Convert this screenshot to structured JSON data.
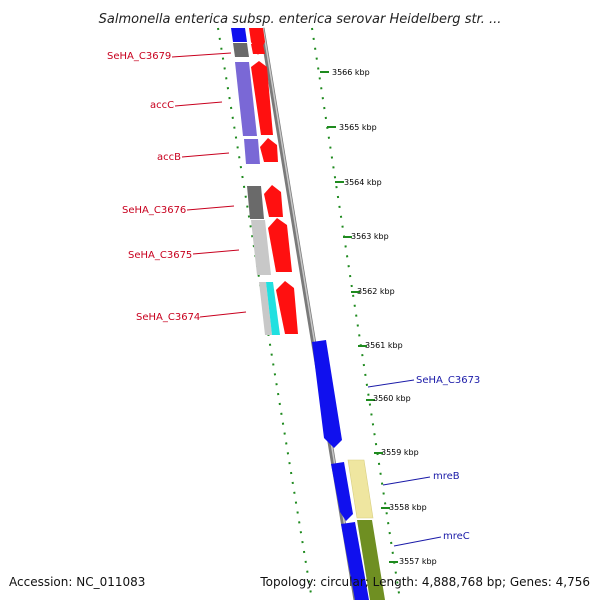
{
  "title": "Salmonella enterica subsp. enterica serovar Heidelberg str. ...",
  "footer": {
    "accession": "Accession: NC_011083",
    "topology": "Topology: circular; Length: 4,888,768 bp; Genes: 4,756"
  },
  "kbp_labels": [
    "3566 kbp",
    "3565 kbp",
    "3564 kbp",
    "3563 kbp",
    "3562 kbp",
    "3561 kbp",
    "3560 kbp",
    "3559 kbp",
    "3558 kbp",
    "3557 kbp"
  ],
  "gene_labels": {
    "seha_c3679": "SeHA_C3679",
    "accc": "accC",
    "accb": "accB",
    "seha_c3676": "SeHA_C3676",
    "seha_c3675": "SeHA_C3675",
    "seha_c3674": "SeHA_C3674",
    "seha_c3673": "SeHA_C3673",
    "mreb": "mreB",
    "mrec": "mreC"
  },
  "colors": {
    "label_red": "#c8001e",
    "label_blue": "#1a1aa8",
    "arrow_red": "#ff1010",
    "arrow_blue": "#1010ee",
    "cog_purple": "#7a68d6",
    "cog_gray_dark": "#6a6a6a",
    "cog_gray_light": "#c8c8c8",
    "cog_cyan": "#20e0e0",
    "cog_yellow": "#efe6a0",
    "cog_olive": "#6f8f22",
    "tick_green": "#1e8a1e",
    "backbone": "#8c8c8c"
  }
}
